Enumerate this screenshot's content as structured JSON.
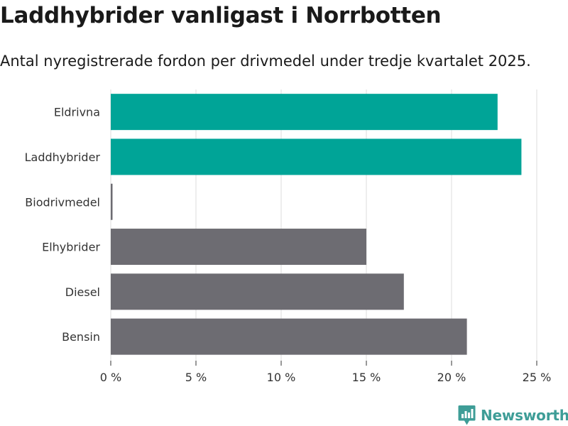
{
  "header": {
    "title": "Laddhybrider vanligast i Norrbotten",
    "subtitle": "Antal nyregistrerade fordon per drivmedel under tredje kvartalet 2025."
  },
  "brand": {
    "name": "Newsworthy",
    "icon": "newsworthy-logo-icon",
    "color": "#3e9d97"
  },
  "colors": {
    "highlight": "#00a497",
    "default": "#6d6c72",
    "grid": "#dcdcdc"
  },
  "chart_data": {
    "type": "bar",
    "orientation": "horizontal",
    "title": "Laddhybrider vanligast i Norrbotten",
    "subtitle": "Antal nyregistrerade fordon per drivmedel under tredje kvartalet 2025.",
    "xlabel": "",
    "ylabel": "",
    "categories": [
      "Eldrivna",
      "Laddhybrider",
      "Biodrivmedel",
      "Elhybrider",
      "Diesel",
      "Bensin"
    ],
    "values": [
      22.7,
      24.1,
      0.1,
      15.0,
      17.2,
      20.9
    ],
    "highlighted": [
      true,
      true,
      false,
      false,
      false,
      false
    ],
    "unit": "%",
    "xlim": [
      0,
      25
    ],
    "ticks": [
      0,
      5,
      10,
      15,
      20,
      25
    ],
    "tick_labels": [
      "0 %",
      "5 %",
      "10 %",
      "15 %",
      "20 %",
      "25 %"
    ],
    "grid": true
  }
}
